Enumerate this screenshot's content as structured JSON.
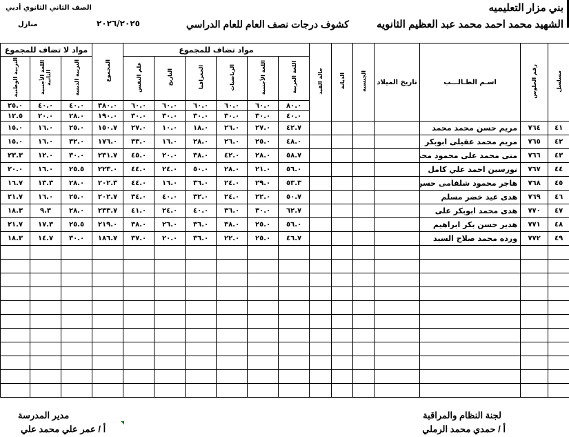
{
  "header": {
    "directorate": "بني مزار التعليميه",
    "school": "الشهيد محمد احمد محمد عبد العظيم الثانويه",
    "sheet_title": "كشوف درجات نصف العام للعام الدراسي",
    "year": "٢٠٢٦/٢٠٢٥",
    "grade": "الصف الثاني الثانوي أدبي",
    "home": "منازل"
  },
  "columns": {
    "serial": "مسلسل",
    "seat": "رقم الجلوس",
    "name": "اسـم الطـالـــب",
    "birth": "تاريخ الميلاد",
    "nationality": "الجنسية",
    "religion_col": "الديانة",
    "status": "حالة القيد",
    "group_added": "مواد تضاف للمجموع",
    "group_not_added": "مواد لا تضاف للمجموع",
    "subjects": [
      "اللغة العربية",
      "اللغة الأجنبية",
      "الرياضيات",
      "الجغرافيا",
      "التاريخ",
      "علم النفس",
      "المجموع",
      "التربية الدينية",
      "اللغة الأجنبية الثانية",
      "التربية الوطنية"
    ]
  },
  "max_marks": [
    "٨٠.٠",
    "٦٠.٠",
    "٦٠.٠",
    "٦٠.٠",
    "٦٠.٠",
    "٦٠.٠",
    "٣٨٠.٠",
    "٤٠.٠",
    "٤٠.٠",
    "٢٥.٠"
  ],
  "min_marks": [
    "٤٠.٠",
    "٣٠.٠",
    "٣٠.٠",
    "٣٠.٠",
    "٣٠.٠",
    "٣٠.٠",
    "١٩٠.٠",
    "٢٨.٠",
    "٢٠.٠",
    "١٢.٥"
  ],
  "students": [
    {
      "serial": "٤١",
      "seat": "٧٦٤",
      "name": "مريم حسن محمد محمد",
      "marks": [
        "٤٢.٧",
        "٢٧.٠",
        "٢٦.٠",
        "١٨.٠",
        "١٠.٠",
        "٢٧.٠",
        "١٥٠.٧",
        "٢٥.٠",
        "١٦.٠",
        "١٥.٠"
      ]
    },
    {
      "serial": "٤٢",
      "seat": "٧٦٥",
      "name": "مريم محمد عقيلى ابوبكر",
      "marks": [
        "٤٨.٠",
        "٢٥.٠",
        "٢٦.٠",
        "٢٨.٠",
        "١٦.٠",
        "٣٣.٠",
        "١٧٦.٠",
        "٣٢.٠",
        "١٦.٠",
        "١٥.٠"
      ]
    },
    {
      "serial": "٤٣",
      "seat": "٧٦٦",
      "name": "منى محمد على محمود محمد",
      "marks": [
        "٥٨.٧",
        "٢٨.٠",
        "٤٢.٠",
        "٣٨.٠",
        "٢٠.٠",
        "٤٥.٠",
        "٢٣١.٧",
        "٣٠.٠",
        "١٢.٠",
        "٢٣.٣"
      ]
    },
    {
      "serial": "٤٤",
      "seat": "٧٦٧",
      "name": "نورسين احمد علي كامل",
      "marks": [
        "٥٦.٠",
        "٢١.٠",
        "٢٨.٠",
        "٥٠.٠",
        "٢٤.٠",
        "٤٤.٠",
        "٢٢٣.٠",
        "٢٥.٥",
        "١٦.٠",
        "٢٠.٠"
      ]
    },
    {
      "serial": "٤٥",
      "seat": "٧٦٨",
      "name": "هاجر محمود شلقامى حسن",
      "marks": [
        "٥٣.٣",
        "٢٩.٠",
        "٢٤.٠",
        "٣٦.٠",
        "١٦.٠",
        "٤٤.٠",
        "٢٠٢.٣",
        "٢٨.٠",
        "١٣.٣",
        "١٦.٧"
      ]
    },
    {
      "serial": "٤٦",
      "seat": "٧٦٩",
      "name": "هدى عيد خضر مسلم",
      "marks": [
        "٥٠.٧",
        "٢٢.٠",
        "٢٤.٠",
        "٣٢.٠",
        "٤٠.٠",
        "٣٤.٠",
        "٢٠٢.٧",
        "٢٥.٠",
        "١٦.٠",
        "٢١.٧"
      ]
    },
    {
      "serial": "٤٧",
      "seat": "٧٧٠",
      "name": "هدى محمد ابوبكر على",
      "marks": [
        "٦٢.٧",
        "٣٠.٠",
        "٣٦.٠",
        "٤٠.٠",
        "٢٤.٠",
        "٤١.٠",
        "٢٣٣.٧",
        "٢٨.٠",
        "٩.٣",
        "١٨.٣"
      ]
    },
    {
      "serial": "٤٨",
      "seat": "٧٧١",
      "name": "هدير حسن بكر ابراهيم",
      "marks": [
        "٥٦.٠",
        "٢٥.٠",
        "٣٨.٠",
        "٣٦.٠",
        "٢٦.٠",
        "٣٨.٠",
        "٢١٩.٠",
        "٢٥.٥",
        "١٧.٣",
        "٢١.٧"
      ]
    },
    {
      "serial": "٤٩",
      "seat": "٧٧٢",
      "name": "ورده محمد صلاح السيد",
      "marks": [
        "٤٦.٧",
        "٢٥.٠",
        "٢٢.٠",
        "٣٦.٠",
        "٢٠.٠",
        "٣٧.٠",
        "١٨٦.٧",
        "٣٠.٠",
        "١٤.٧",
        "١٨.٣"
      ]
    }
  ],
  "footer": {
    "committee_title": "لجنة النظام والمراقبة",
    "committee_name": "أ / حمدي محمد الرملي",
    "principal_title": "مدير المدرسة",
    "principal_name": "أ / عمر علي محمد علي"
  },
  "colors": {
    "border": "#000000",
    "cell_marker": "#1a7a1a"
  }
}
